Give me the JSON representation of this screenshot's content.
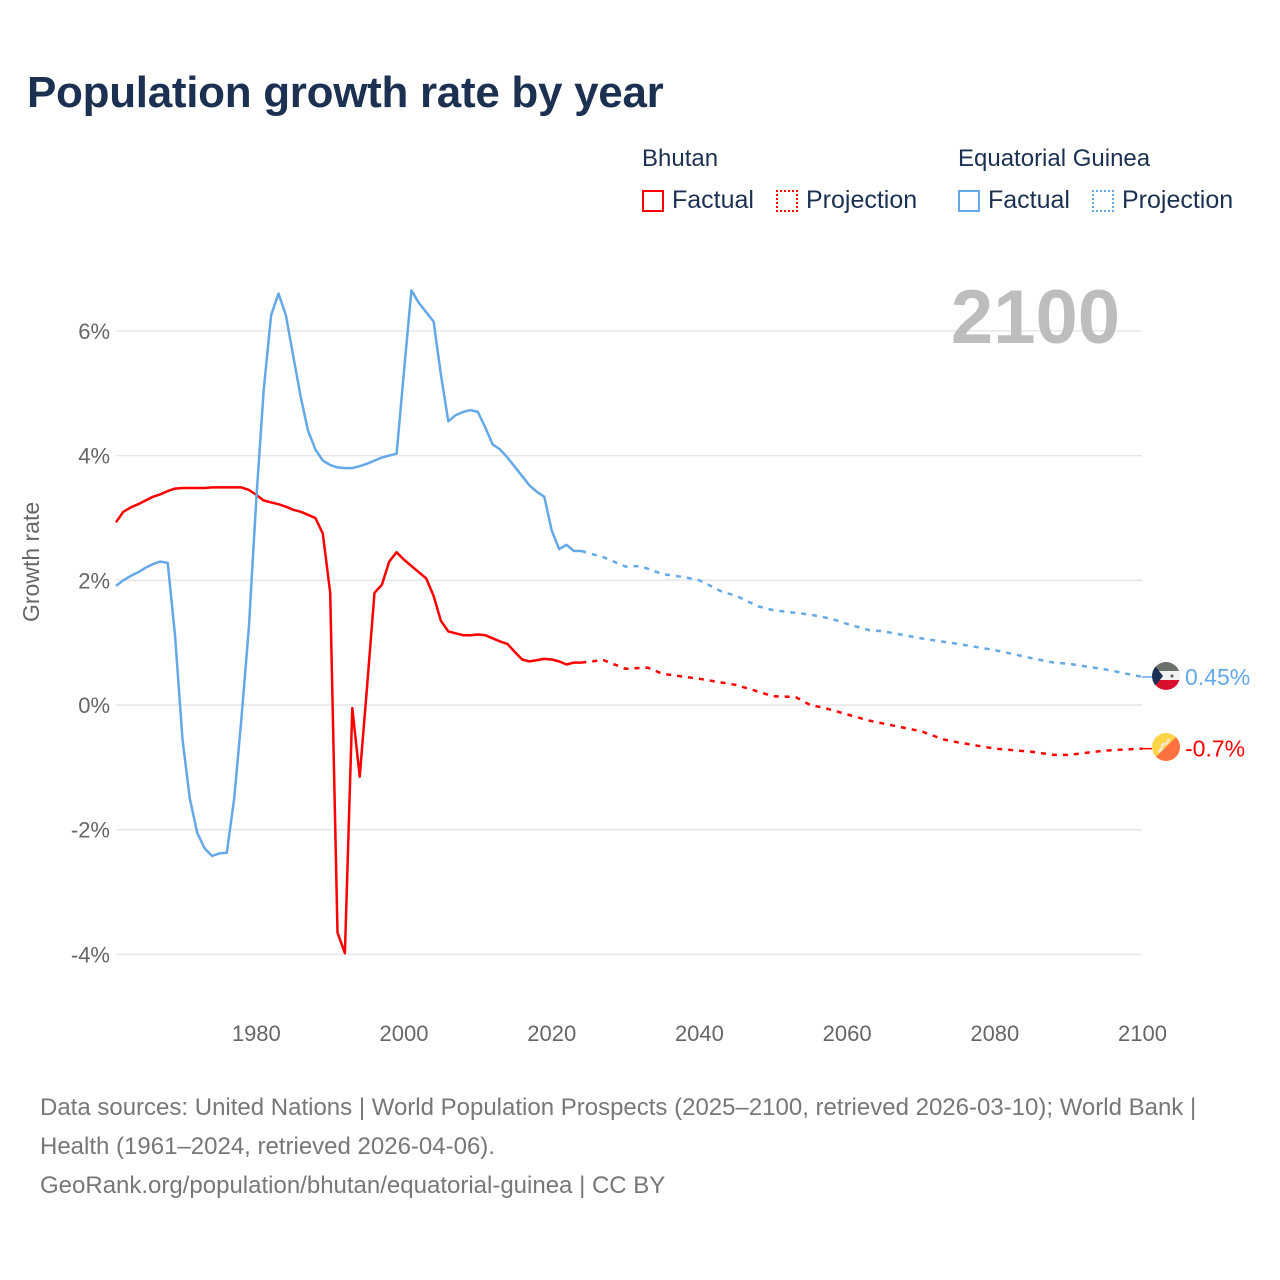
{
  "chart_data": {
    "type": "line",
    "title": "Population growth rate by year",
    "ylabel": "Growth rate",
    "xlabel": "",
    "xlim": [
      1961,
      2100
    ],
    "ylim": [
      -4.6,
      6.8
    ],
    "y_ticks": [
      6,
      4,
      2,
      0,
      -2,
      -4
    ],
    "y_tick_labels": [
      "6%",
      "4%",
      "2%",
      "0%",
      "-2%",
      "-4%"
    ],
    "x_ticks": [
      1980,
      2000,
      2020,
      2040,
      2060,
      2080,
      2100
    ],
    "x_tick_labels": [
      "1980",
      "2000",
      "2020",
      "2040",
      "2060",
      "2080",
      "2100"
    ],
    "year_label": "2100",
    "legend": {
      "placement": "top-right",
      "groups": [
        {
          "country": "Bhutan",
          "factual": "Factual",
          "projection": "Projection",
          "color": "#ff0000"
        },
        {
          "country": "Equatorial Guinea",
          "factual": "Factual",
          "projection": "Projection",
          "color": "#64a8e8"
        }
      ]
    },
    "series": [
      {
        "name": "Bhutan",
        "color": "#ff0000",
        "end_label": "-0.7%",
        "factual": {
          "x": [
            1961,
            1962,
            1963,
            1964,
            1965,
            1966,
            1967,
            1968,
            1969,
            1970,
            1971,
            1972,
            1973,
            1974,
            1975,
            1976,
            1977,
            1978,
            1979,
            1980,
            1981,
            1982,
            1983,
            1984,
            1985,
            1986,
            1987,
            1988,
            1989,
            1990,
            1991,
            1992,
            1993,
            1994,
            1995,
            1996,
            1997,
            1998,
            1999,
            2000,
            2001,
            2002,
            2003,
            2004,
            2005,
            2006,
            2007,
            2008,
            2009,
            2010,
            2011,
            2012,
            2013,
            2014,
            2015,
            2016,
            2017,
            2018,
            2019,
            2020,
            2021,
            2022,
            2023,
            2024
          ],
          "y": [
            2.93,
            3.1,
            3.17,
            3.22,
            3.28,
            3.34,
            3.38,
            3.43,
            3.47,
            3.48,
            3.48,
            3.48,
            3.48,
            3.49,
            3.49,
            3.49,
            3.49,
            3.49,
            3.45,
            3.37,
            3.28,
            3.25,
            3.22,
            3.18,
            3.13,
            3.1,
            3.05,
            3.0,
            2.75,
            1.8,
            -3.65,
            -3.98,
            -0.05,
            -1.15,
            0.3,
            1.8,
            1.93,
            2.3,
            2.45,
            2.33,
            2.23,
            2.13,
            2.03,
            1.75,
            1.35,
            1.18,
            1.15,
            1.12,
            1.12,
            1.13,
            1.12,
            1.07,
            1.02,
            0.98,
            0.85,
            0.73,
            0.7,
            0.72,
            0.74,
            0.73,
            0.7,
            0.65,
            0.68,
            0.68
          ]
        },
        "projection": {
          "x": [
            2024,
            2027,
            2030,
            2033,
            2035,
            2040,
            2045,
            2050,
            2053,
            2055,
            2057,
            2060,
            2063,
            2065,
            2070,
            2073,
            2075,
            2080,
            2085,
            2088,
            2090,
            2095,
            2100
          ],
          "y": [
            0.68,
            0.72,
            0.58,
            0.6,
            0.5,
            0.42,
            0.32,
            0.14,
            0.13,
            0.0,
            -0.05,
            -0.15,
            -0.25,
            -0.3,
            -0.42,
            -0.55,
            -0.6,
            -0.7,
            -0.75,
            -0.8,
            -0.8,
            -0.73,
            -0.7
          ]
        }
      },
      {
        "name": "Equatorial Guinea",
        "color": "#64a8e8",
        "end_label": "0.45%",
        "factual": {
          "x": [
            1961,
            1962,
            1963,
            1964,
            1965,
            1966,
            1967,
            1968,
            1969,
            1970,
            1971,
            1972,
            1973,
            1974,
            1975,
            1976,
            1977,
            1978,
            1979,
            1980,
            1981,
            1982,
            1983,
            1984,
            1985,
            1986,
            1987,
            1988,
            1989,
            1990,
            1991,
            1992,
            1993,
            1994,
            1995,
            1996,
            1997,
            1998,
            1999,
            2000,
            2001,
            2002,
            2003,
            2004,
            2005,
            2006,
            2007,
            2008,
            2009,
            2010,
            2011,
            2012,
            2013,
            2014,
            2015,
            2016,
            2017,
            2018,
            2019,
            2020,
            2021,
            2022,
            2023,
            2024
          ],
          "y": [
            1.91,
            2.0,
            2.07,
            2.13,
            2.2,
            2.26,
            2.3,
            2.28,
            1.1,
            -0.55,
            -1.5,
            -2.05,
            -2.3,
            -2.42,
            -2.38,
            -2.37,
            -1.5,
            -0.2,
            1.25,
            3.3,
            5.05,
            6.25,
            6.6,
            6.25,
            5.6,
            4.95,
            4.4,
            4.1,
            3.92,
            3.85,
            3.81,
            3.8,
            3.8,
            3.83,
            3.87,
            3.92,
            3.97,
            4.0,
            4.03,
            5.35,
            6.65,
            6.45,
            6.3,
            6.15,
            5.3,
            4.55,
            4.65,
            4.7,
            4.73,
            4.7,
            4.45,
            4.18,
            4.1,
            3.97,
            3.82,
            3.67,
            3.52,
            3.42,
            3.34,
            2.8,
            2.5,
            2.57,
            2.47,
            2.47
          ]
        },
        "projection": {
          "x": [
            2024,
            2027,
            2030,
            2032,
            2035,
            2038,
            2040,
            2043,
            2045,
            2048,
            2050,
            2055,
            2058,
            2060,
            2063,
            2065,
            2070,
            2075,
            2080,
            2085,
            2088,
            2090,
            2095,
            2100
          ],
          "y": [
            2.47,
            2.37,
            2.22,
            2.23,
            2.1,
            2.05,
            2.0,
            1.82,
            1.75,
            1.58,
            1.52,
            1.45,
            1.38,
            1.3,
            1.2,
            1.18,
            1.07,
            0.98,
            0.88,
            0.75,
            0.68,
            0.66,
            0.57,
            0.45
          ]
        }
      }
    ]
  },
  "footer": {
    "line1": "Data sources: United Nations | World Population Prospects (2025–2100, retrieved 2026-03-10); World Bank | Health (1961–2024, retrieved 2026-04-06).",
    "line2": "GeoRank.org/population/bhutan/equatorial-guinea | CC BY"
  }
}
